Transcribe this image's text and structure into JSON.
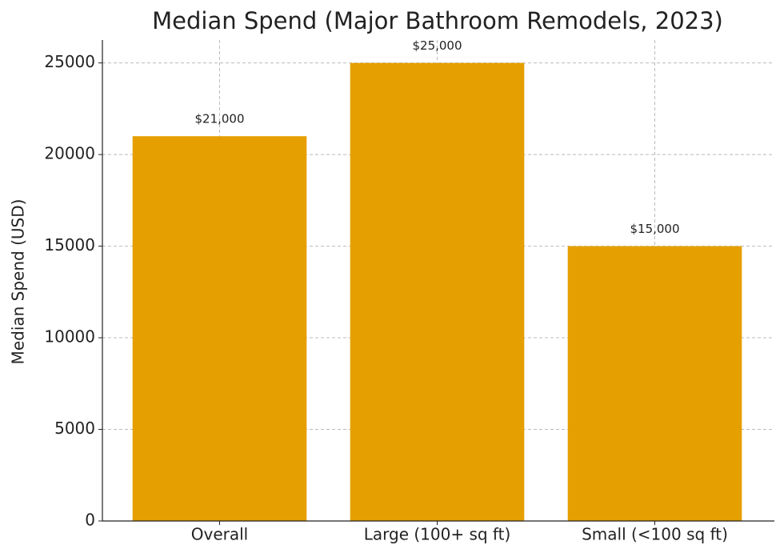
{
  "chart_data": {
    "type": "bar",
    "title": "Median Spend (Major Bathroom Remodels, 2023)",
    "y_label": "Median Spend (USD)",
    "categories": [
      "Overall",
      "Large (100+ sq ft)",
      "Small (<100 sq ft)"
    ],
    "values": [
      21000,
      25000,
      15000
    ],
    "value_labels": [
      "$21,000",
      "$25,000",
      "$15,000"
    ],
    "color": "#e69f00",
    "ylim": [
      0,
      26250
    ],
    "yticks": [
      0,
      5000,
      10000,
      15000,
      20000,
      25000
    ],
    "grid": true
  }
}
